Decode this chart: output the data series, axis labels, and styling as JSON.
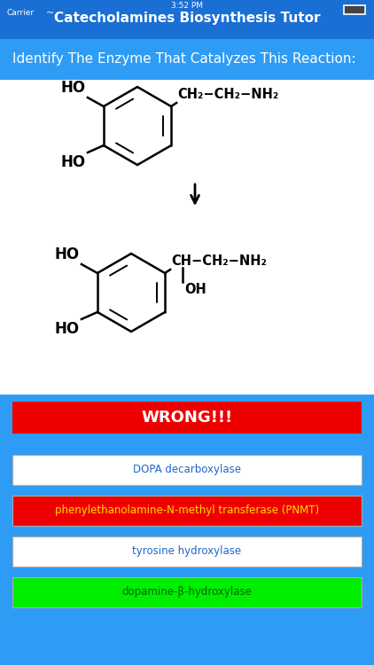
{
  "title": "Catecholamines Biosynthesis Tutor",
  "subtitle": "Identify The Enzyme That Catalyzes This Reaction:",
  "nav_bar_color": "#1a6fd4",
  "main_bg_color": "#2e9cf5",
  "white_bg_color": "#ffffff",
  "title_text_color": "#ffffff",
  "subtitle_text_color": "#ffffff",
  "wrong_label": "WRONG!!!",
  "wrong_bg": "#ee0000",
  "wrong_text_color": "#ffffff",
  "buttons": [
    {
      "label": "DOPA decarboxylase",
      "bg": "#ffffff",
      "text_color": "#2166cc",
      "border": "#dddddd"
    },
    {
      "label": "phenylethanolamine-N-methyl transferase (PNMT)",
      "bg": "#ee0000",
      "text_color": "#ffdd00",
      "border": "#ee0000"
    },
    {
      "label": "tyrosine hydroxylase",
      "bg": "#ffffff",
      "text_color": "#2166cc",
      "border": "#dddddd"
    },
    {
      "label": "dopamine-β-hydroxylase",
      "bg": "#00ee00",
      "text_color": "#006600",
      "border": "#00ee00"
    }
  ]
}
